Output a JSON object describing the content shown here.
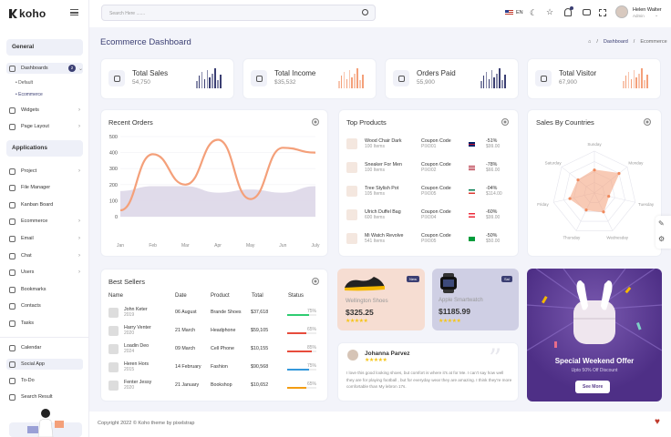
{
  "app": {
    "name": "koho"
  },
  "sidebar": {
    "general_label": "General",
    "applications_label": "Applications",
    "dashboards": {
      "label": "Dashboards",
      "badge": "2"
    },
    "subitems": [
      {
        "label": "Default"
      },
      {
        "label": "Ecommerce"
      }
    ],
    "general_items": [
      {
        "label": "Widgets"
      },
      {
        "label": "Page Layout"
      }
    ],
    "app_items": [
      {
        "label": "Project"
      },
      {
        "label": "File Manager"
      },
      {
        "label": "Kanban Board"
      },
      {
        "label": "Ecommerce"
      },
      {
        "label": "Email"
      },
      {
        "label": "Chat"
      },
      {
        "label": "Users"
      },
      {
        "label": "Bookmarks"
      },
      {
        "label": "Contacts"
      },
      {
        "label": "Tasks"
      }
    ],
    "bottom_items": [
      {
        "label": "Calendar"
      },
      {
        "label": "Social App"
      },
      {
        "label": "To-Do"
      },
      {
        "label": "Search Result"
      }
    ]
  },
  "header": {
    "search_placeholder": "Search Here .......",
    "lang": "EN",
    "user_name": "Helen Walter",
    "user_role": "Admin"
  },
  "page": {
    "title": "Ecommerce Dashboard",
    "breadcrumb": [
      "Dashboard",
      "Ecommerce"
    ]
  },
  "stats": [
    {
      "label": "Total Sales",
      "value": "54,750"
    },
    {
      "label": "Total Income",
      "value": "$35,532"
    },
    {
      "label": "Orders Paid",
      "value": "55,900"
    },
    {
      "label": "Total Visitor",
      "value": "67,900"
    }
  ],
  "colors": {
    "primary": "#3b3f73",
    "accent": "#f4a07a",
    "purple": "#cdc5e1"
  },
  "recent_orders": {
    "title": "Recent Orders"
  },
  "chart_data": {
    "type": "line",
    "title": "Recent Orders",
    "categories": [
      "Jan",
      "Feb",
      "Mar",
      "Apr",
      "May",
      "Jun",
      "July"
    ],
    "ylim": [
      0,
      500
    ],
    "yticks": [
      "500",
      "400",
      "300",
      "200",
      "100",
      "0"
    ],
    "series": [
      {
        "values": [
          40,
          390,
          200,
          480,
          110,
          430,
          400
        ],
        "style": "line"
      },
      {
        "values": [
          160,
          190,
          190,
          150,
          170,
          150,
          190
        ],
        "style": "area"
      }
    ]
  },
  "top_products": {
    "title": "Top Products",
    "items": [
      {
        "name": "Wood Chair Dark",
        "items": "100 Items",
        "code_label": "Coupon Code",
        "code": "PIX001",
        "pct": "-51%",
        "price": "$99.00"
      },
      {
        "name": "Sneaker For Men",
        "items": "100 Items",
        "code_label": "Coupon Code",
        "code": "PIX002",
        "pct": "-78%",
        "price": "$66.00"
      },
      {
        "name": "Tree Stylish Pot",
        "items": "105 Items",
        "code_label": "Coupon Code",
        "code": "PIX005",
        "pct": "-04%",
        "price": "$114.00"
      },
      {
        "name": "Ulrich Duffel Bag",
        "items": "600 Items",
        "code_label": "Coupon Code",
        "code": "PIX004",
        "pct": "-60%",
        "price": "$99.00"
      },
      {
        "name": "Mi Watch Revolve",
        "items": "541 Items",
        "code_label": "Coupon Code",
        "code": "PIX005",
        "pct": "-50%",
        "price": "$50.00"
      }
    ]
  },
  "sales_countries": {
    "title": "Sales By Countries",
    "days": [
      "Sunday",
      "Monday",
      "Tuesday",
      "Wednesday",
      "Thursday",
      "Friday",
      "Saturday"
    ]
  },
  "best_sellers": {
    "title": "Best Sellers",
    "columns": [
      "Name",
      "Date",
      "Product",
      "Total",
      "Status"
    ],
    "rows": [
      {
        "name": "John Keter",
        "year": "2019",
        "date": "06 August",
        "product": "Brande Shoes",
        "total": "$37,618",
        "status": "75%",
        "pct": 0.75,
        "color": "#2ecc71"
      },
      {
        "name": "Harry Venter",
        "year": "2020",
        "date": "21 March",
        "product": "Headphone",
        "total": "$59,105",
        "status": "65%",
        "pct": 0.65,
        "color": "#e74c3c"
      },
      {
        "name": "Loadin Deo",
        "year": "2024",
        "date": "09 March",
        "product": "Cell Phone",
        "total": "$10,155",
        "status": "85%",
        "pct": 0.85,
        "color": "#e74c3c"
      },
      {
        "name": "Heren Hors",
        "year": "2015",
        "date": "14 February",
        "product": "Fashion",
        "total": "$90,568",
        "status": "75%",
        "pct": 0.75,
        "color": "#3498db"
      },
      {
        "name": "Fenter Jessy",
        "year": "2020",
        "date": "21 January",
        "product": "Bookshop",
        "total": "$10,652",
        "status": "65%",
        "pct": 0.65,
        "color": "#f39c12"
      }
    ]
  },
  "promo_shoes": {
    "name": "Wellington Shoes",
    "price": "$325.25",
    "badge": "New"
  },
  "promo_watch": {
    "name": "Apple Smartwatch",
    "price": "$1185.99",
    "badge": "Sal"
  },
  "review": {
    "author": "Johanna Parvez",
    "text": "I love this good looking shoes, but comfort is where it's at for Me. I can't say how well they are for playing football , but for everyday wear they are amazing. I think they're more comfortable than My lebron 17s."
  },
  "special": {
    "title": "Special Weekend Offer",
    "subtitle": "Upto 50% Off Discount",
    "button": "See More"
  },
  "footer": {
    "text": "Copyright 2022 © Koho theme by pixelstrap"
  }
}
